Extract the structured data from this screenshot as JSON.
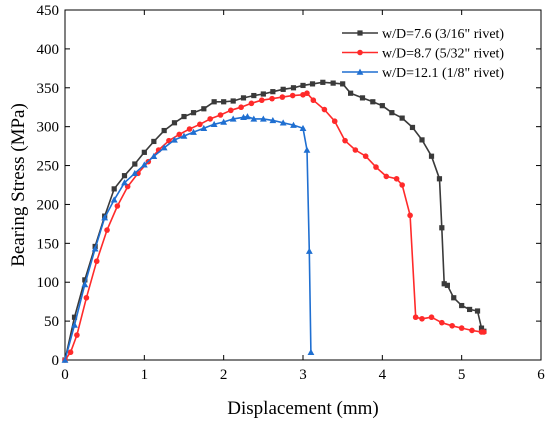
{
  "chart_data": {
    "type": "line",
    "title": "",
    "xlabel": "Displacement (mm)",
    "ylabel": "Bearing Stress (MPa)",
    "xlim": [
      0,
      6
    ],
    "ylim": [
      0,
      450
    ],
    "x_ticks": [
      0,
      1,
      2,
      3,
      4,
      5,
      6
    ],
    "y_ticks": [
      0,
      50,
      100,
      150,
      200,
      250,
      300,
      350,
      400,
      450
    ],
    "grid": false,
    "legend_position": "top-right",
    "series": [
      {
        "name": "w/D=7.6 (3/16\" rivet)",
        "color": "#3a3a3a",
        "marker": "square",
        "x": [
          0.0,
          0.12,
          0.25,
          0.38,
          0.5,
          0.62,
          0.75,
          0.88,
          1.0,
          1.12,
          1.25,
          1.38,
          1.5,
          1.62,
          1.75,
          1.88,
          2.0,
          2.12,
          2.25,
          2.38,
          2.5,
          2.62,
          2.75,
          2.88,
          3.0,
          3.12,
          3.25,
          3.38,
          3.5,
          3.6,
          3.75,
          3.88,
          4.0,
          4.12,
          4.25,
          4.38,
          4.5,
          4.62,
          4.72,
          4.75,
          4.78,
          4.82,
          4.9,
          5.0,
          5.1,
          5.2,
          5.25,
          5.28
        ],
        "y": [
          0,
          55,
          103,
          146,
          185,
          220,
          237,
          252,
          267,
          281,
          295,
          305,
          313,
          318,
          323,
          332,
          332,
          333,
          337,
          340,
          342,
          345,
          348,
          350,
          353,
          355,
          357,
          356,
          355,
          343,
          337,
          332,
          327,
          318,
          311,
          299,
          283,
          262,
          233,
          170,
          98,
          96,
          80,
          70,
          65,
          63,
          41,
          37
        ]
      },
      {
        "name": "w/D=8.7 (5/32\" rivet)",
        "color": "#ff2a2a",
        "marker": "circle",
        "x": [
          0.0,
          0.07,
          0.15,
          0.27,
          0.4,
          0.53,
          0.66,
          0.79,
          0.92,
          1.05,
          1.18,
          1.31,
          1.44,
          1.57,
          1.7,
          1.83,
          1.96,
          2.09,
          2.22,
          2.35,
          2.48,
          2.61,
          2.74,
          2.87,
          3.0,
          3.05,
          3.13,
          3.27,
          3.4,
          3.53,
          3.66,
          3.79,
          3.92,
          4.05,
          4.18,
          4.25,
          4.35,
          4.42,
          4.5,
          4.62,
          4.75,
          4.88,
          5.0,
          5.13,
          5.25,
          5.28
        ],
        "y": [
          0,
          10,
          32,
          80,
          127,
          167,
          198,
          223,
          240,
          255,
          270,
          282,
          290,
          297,
          303,
          310,
          315,
          321,
          325,
          330,
          334,
          336,
          338,
          340,
          341,
          343,
          334,
          322,
          307,
          282,
          270,
          262,
          248,
          236,
          233,
          225,
          186,
          55,
          53,
          55,
          48,
          44,
          41,
          38,
          36,
          36
        ]
      },
      {
        "name": "w/D=12.1 (1/8\" rivet)",
        "color": "#1f6fd1",
        "marker": "triangle",
        "x": [
          0.0,
          0.12,
          0.25,
          0.38,
          0.5,
          0.62,
          0.75,
          0.88,
          1.0,
          1.12,
          1.25,
          1.38,
          1.5,
          1.62,
          1.75,
          1.88,
          2.0,
          2.12,
          2.25,
          2.3,
          2.38,
          2.5,
          2.62,
          2.75,
          2.88,
          3.0,
          3.05,
          3.08,
          3.1
        ],
        "y": [
          0,
          45,
          97,
          143,
          183,
          206,
          228,
          240,
          251,
          262,
          273,
          283,
          288,
          293,
          298,
          303,
          306,
          310,
          312,
          313,
          310,
          310,
          308,
          305,
          302,
          298,
          270,
          140,
          10
        ]
      }
    ]
  }
}
